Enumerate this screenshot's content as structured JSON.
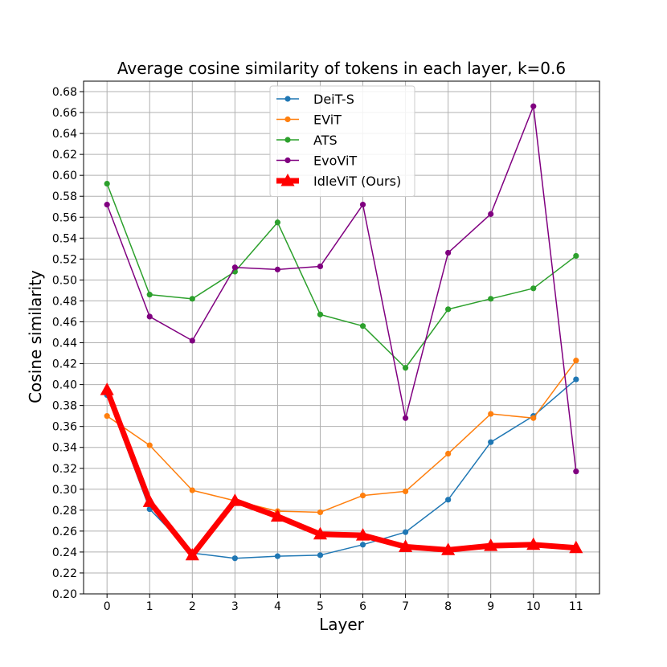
{
  "chart_data": {
    "type": "line",
    "title": "Average cosine similarity of tokens in each layer, k=0.6",
    "xlabel": "Layer",
    "ylabel": "Cosine similarity",
    "x": [
      0,
      1,
      2,
      3,
      4,
      5,
      6,
      7,
      8,
      9,
      10,
      11
    ],
    "x_tick_labels": [
      "0",
      "1",
      "2",
      "3",
      "4",
      "5",
      "6",
      "7",
      "8",
      "9",
      "10",
      "11"
    ],
    "xlim": [
      -0.55,
      11.55
    ],
    "ylim": [
      0.2,
      0.69
    ],
    "y_ticks": [
      0.2,
      0.22,
      0.24,
      0.26,
      0.28,
      0.3,
      0.32,
      0.34,
      0.36,
      0.38,
      0.4,
      0.42,
      0.44,
      0.46,
      0.48,
      0.5,
      0.52,
      0.54,
      0.56,
      0.58,
      0.6,
      0.62,
      0.64,
      0.66,
      0.68
    ],
    "y_tick_labels": [
      "0.20",
      "0.22",
      "0.24",
      "0.26",
      "0.28",
      "0.30",
      "0.32",
      "0.34",
      "0.36",
      "0.38",
      "0.40",
      "0.42",
      "0.44",
      "0.46",
      "0.48",
      "0.50",
      "0.52",
      "0.54",
      "0.56",
      "0.58",
      "0.60",
      "0.62",
      "0.64",
      "0.66",
      "0.68"
    ],
    "grid": true,
    "legend_position": "top-center",
    "series": [
      {
        "name": "DeiT-S",
        "color": "#1f77b4",
        "marker": "circle",
        "emphasis": false,
        "values": [
          0.39,
          0.281,
          0.239,
          0.234,
          0.236,
          0.237,
          0.247,
          0.259,
          0.29,
          0.345,
          0.37,
          0.405
        ]
      },
      {
        "name": "EViT",
        "color": "#ff7f0e",
        "marker": "circle",
        "emphasis": false,
        "values": [
          0.37,
          0.342,
          0.299,
          0.289,
          0.279,
          0.278,
          0.294,
          0.298,
          0.334,
          0.372,
          0.368,
          0.423
        ]
      },
      {
        "name": "ATS",
        "color": "#2ca02c",
        "marker": "circle",
        "emphasis": false,
        "values": [
          0.592,
          0.486,
          0.482,
          0.508,
          0.555,
          0.467,
          0.456,
          0.416,
          0.472,
          0.482,
          0.492,
          0.523
        ]
      },
      {
        "name": "EvoViT",
        "color": "#800080",
        "marker": "circle",
        "emphasis": false,
        "values": [
          0.572,
          0.465,
          0.442,
          0.512,
          0.51,
          0.513,
          0.572,
          0.368,
          0.526,
          0.563,
          0.666,
          0.317
        ]
      },
      {
        "name": "IdleViT (Ours)",
        "color": "#ff0000",
        "marker": "triangle",
        "emphasis": true,
        "values": [
          0.395,
          0.288,
          0.237,
          0.289,
          0.274,
          0.257,
          0.256,
          0.245,
          0.242,
          0.246,
          0.247,
          0.244
        ]
      }
    ]
  }
}
